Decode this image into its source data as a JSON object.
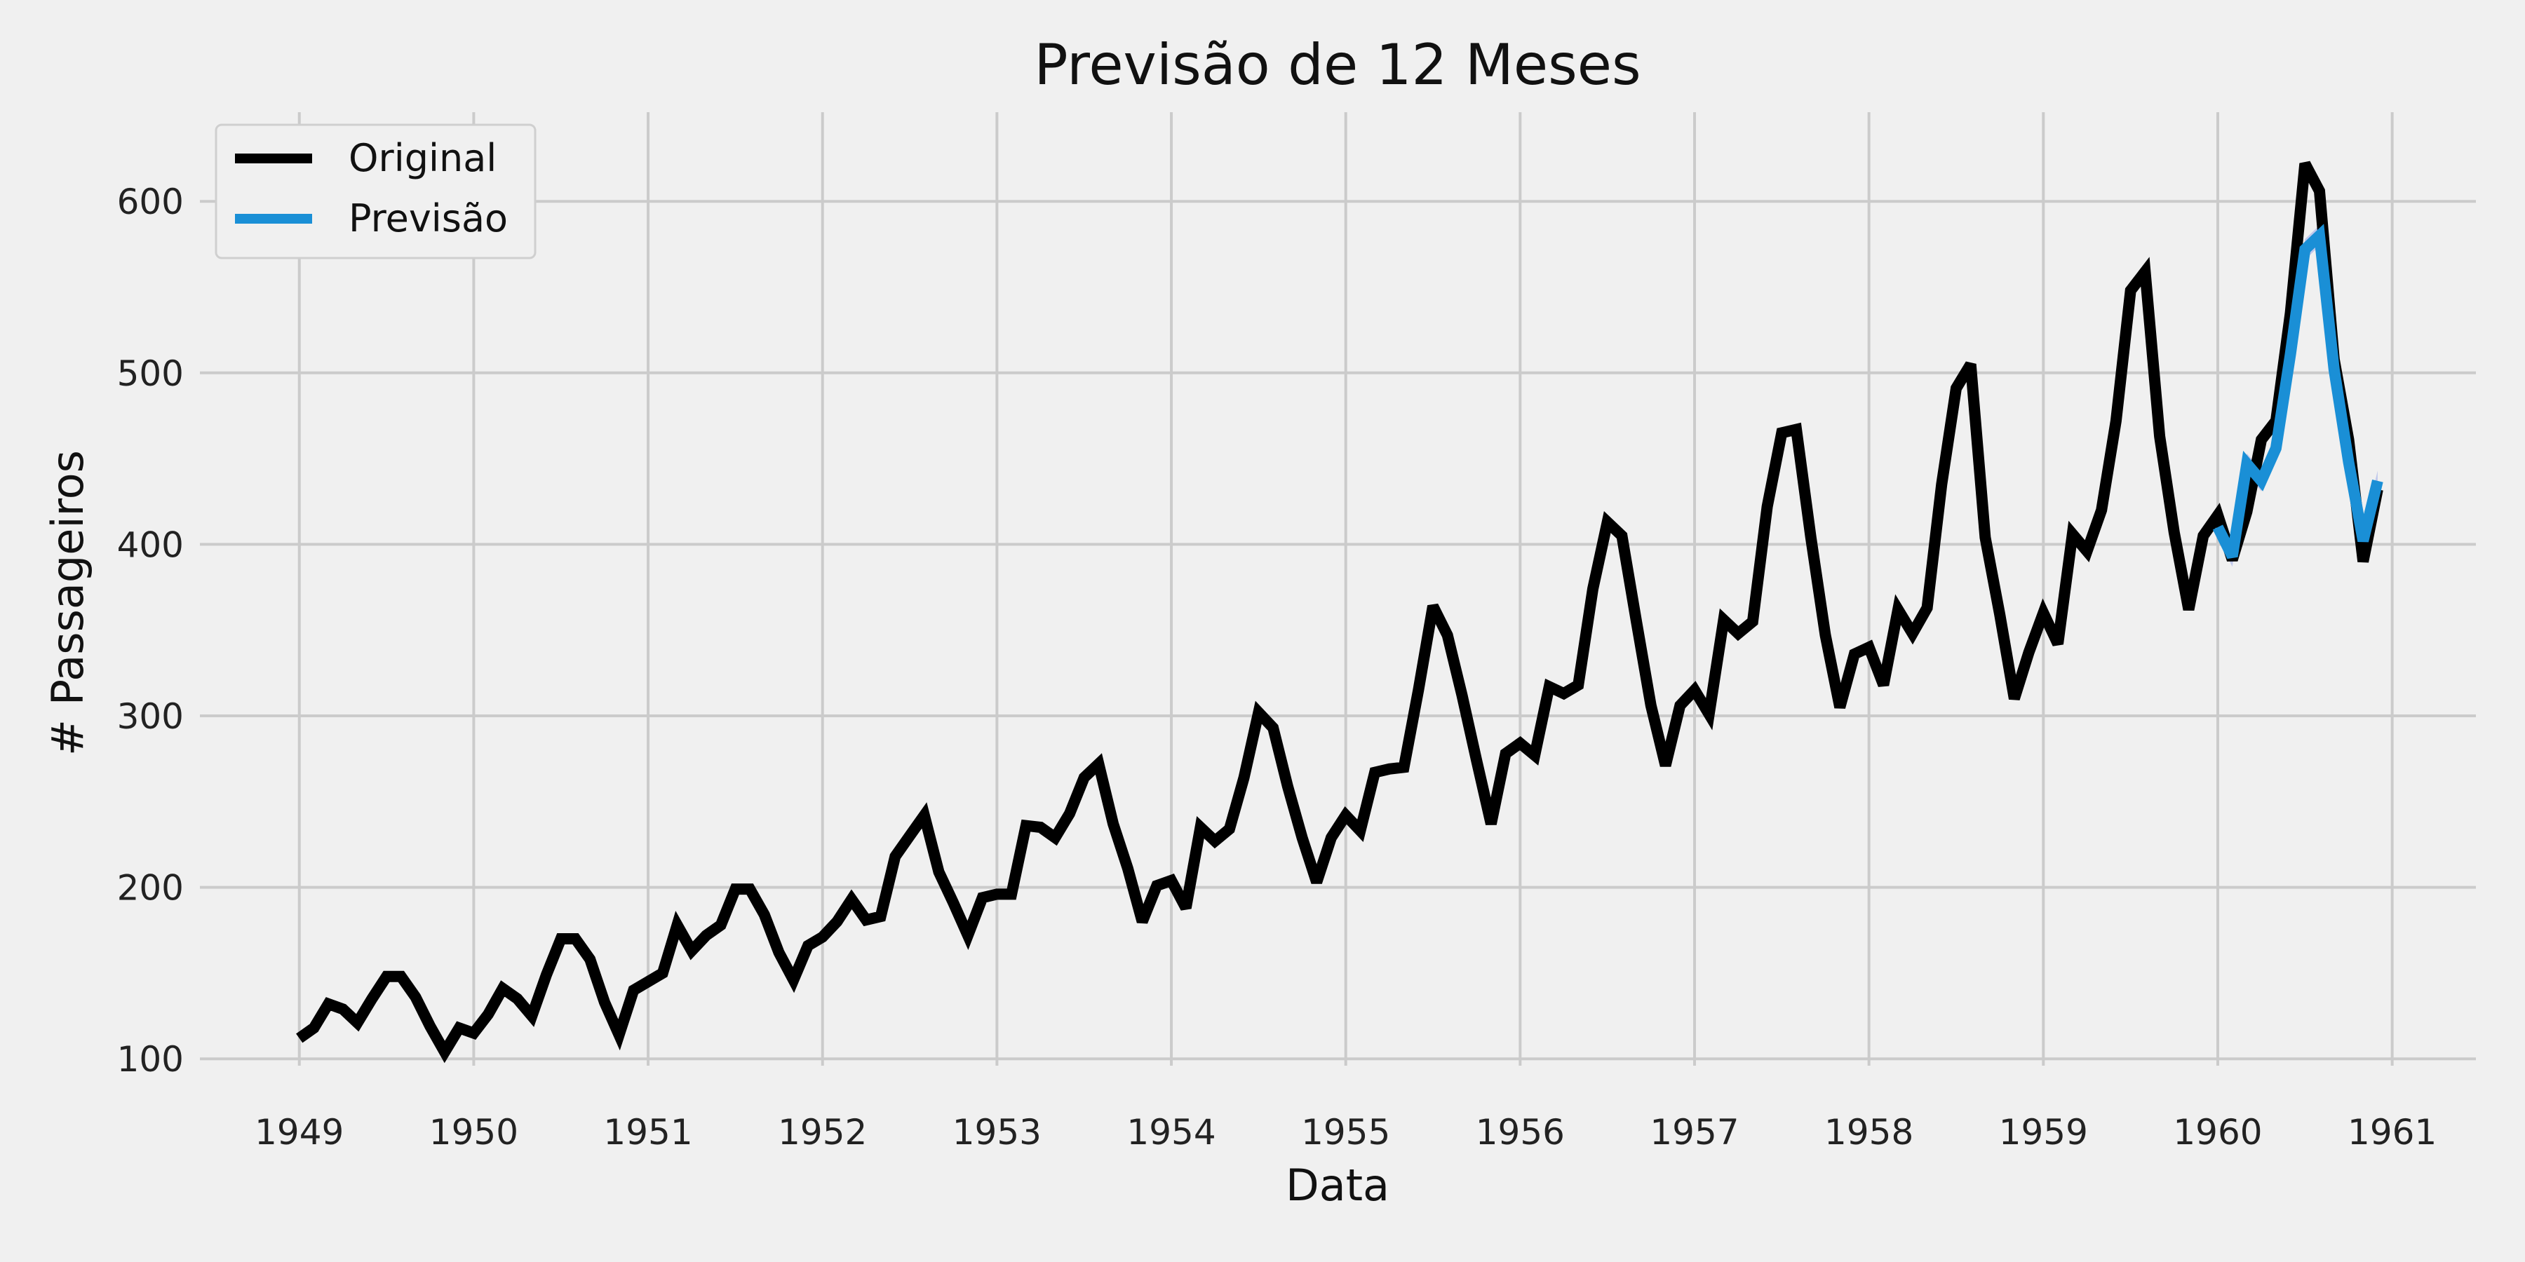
{
  "chart_data": {
    "type": "line",
    "title": "Previsão de 12 Meses",
    "xlabel": "Data",
    "ylabel": "# Passageiros",
    "x_unit": "year",
    "xlim": [
      1948.43,
      1961.48
    ],
    "ylim": [
      96,
      652
    ],
    "x_ticks": [
      "1949",
      "1950",
      "1951",
      "1952",
      "1953",
      "1954",
      "1955",
      "1956",
      "1957",
      "1958",
      "1959",
      "1960",
      "1961"
    ],
    "y_ticks": [
      "100",
      "200",
      "300",
      "400",
      "500",
      "600"
    ],
    "grid": true,
    "legend_position": "top-left",
    "series": [
      {
        "name": "Original",
        "color": "#000000",
        "start": "1949-01",
        "step": "month",
        "values": [
          112,
          118,
          132,
          129,
          121,
          135,
          148,
          148,
          136,
          119,
          104,
          118,
          115,
          126,
          141,
          135,
          125,
          149,
          170,
          170,
          158,
          133,
          114,
          140,
          145,
          150,
          178,
          163,
          172,
          178,
          199,
          199,
          184,
          162,
          146,
          166,
          171,
          180,
          193,
          181,
          183,
          218,
          230,
          242,
          209,
          191,
          172,
          194,
          196,
          196,
          236,
          235,
          229,
          243,
          264,
          272,
          237,
          211,
          180,
          201,
          204,
          188,
          235,
          227,
          234,
          264,
          302,
          293,
          259,
          229,
          203,
          229,
          242,
          233,
          267,
          269,
          270,
          315,
          364,
          347,
          312,
          274,
          237,
          278,
          284,
          277,
          317,
          313,
          318,
          374,
          413,
          405,
          355,
          306,
          271,
          306,
          315,
          301,
          356,
          348,
          355,
          422,
          465,
          467,
          404,
          347,
          305,
          336,
          340,
          318,
          362,
          348,
          363,
          435,
          491,
          505,
          404,
          359,
          310,
          337,
          360,
          342,
          406,
          396,
          420,
          472,
          548,
          559,
          463,
          407,
          362,
          405,
          417,
          391,
          419,
          461,
          472,
          535,
          622,
          606,
          508,
          461,
          390,
          432
        ]
      },
      {
        "name": "Previsão",
        "color": "#1a8fd6",
        "start": "1960-01",
        "step": "month",
        "values": [
          410,
          393,
          447,
          437,
          456,
          511,
          572,
          580,
          502,
          448,
          402,
          437
        ]
      }
    ]
  }
}
